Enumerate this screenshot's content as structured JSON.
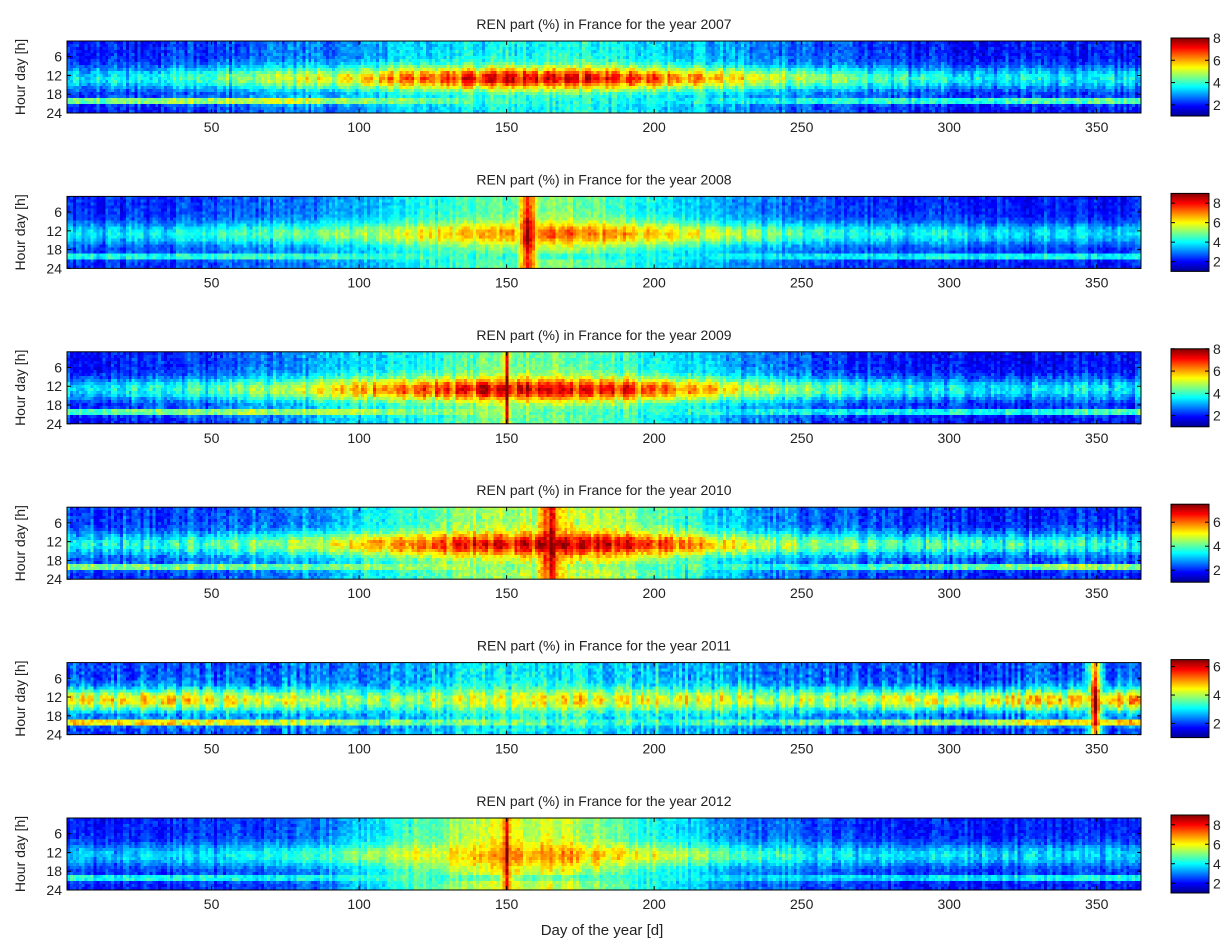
{
  "figure": {
    "xlabel": "Day of the year [d]"
  },
  "colormap": [
    "#00008f",
    "#0000ff",
    "#0080ff",
    "#00ffff",
    "#80ff80",
    "#ffff00",
    "#ff8000",
    "#ff0000",
    "#800000"
  ],
  "chart_data": [
    {
      "type": "heatmap",
      "title": "REN part (%) in France for the year 2007",
      "year": 2007,
      "ylabel": "Hour day [h]",
      "x_ticks": [
        50,
        100,
        150,
        200,
        250,
        300,
        350
      ],
      "y_ticks": [
        6,
        12,
        18,
        24
      ],
      "xlim": [
        1,
        365
      ],
      "ylim": [
        1,
        24
      ],
      "colorbar_ticks": [
        2,
        4,
        6,
        8
      ],
      "clim": [
        1,
        8
      ],
      "day_peak": [
        3.5,
        3.8,
        4.6,
        5.4,
        6.4,
        7.4,
        7.5,
        6.9,
        5.8,
        4.8,
        4.1,
        3.8,
        3.7,
        3.6
      ],
      "evening_band": [
        5.6,
        6.0,
        6.3,
        6.2,
        5.2,
        4.2,
        3.8,
        3.8,
        4.0,
        4.5,
        4.8,
        5.0,
        5.4,
        5.6
      ],
      "base": [
        2.0,
        2.1,
        2.4,
        2.8,
        3.2,
        3.6,
        3.8,
        3.5,
        3.0,
        2.5,
        2.1,
        2.0,
        2.0,
        2.0
      ],
      "hotspots": []
    },
    {
      "type": "heatmap",
      "title": "REN part (%) in France for the year 2008",
      "year": 2008,
      "ylabel": "Hour day [h]",
      "x_ticks": [
        50,
        100,
        150,
        200,
        250,
        300,
        350
      ],
      "y_ticks": [
        6,
        12,
        18,
        24
      ],
      "xlim": [
        1,
        365
      ],
      "ylim": [
        1,
        24
      ],
      "colorbar_ticks": [
        2,
        4,
        6,
        8
      ],
      "clim": [
        1,
        9
      ],
      "day_peak": [
        3.8,
        4.0,
        4.5,
        5.0,
        5.8,
        6.8,
        7.4,
        6.8,
        5.6,
        4.6,
        4.2,
        4.0,
        3.9,
        3.8
      ],
      "evening_band": [
        5.0,
        5.2,
        5.4,
        5.3,
        4.8,
        4.2,
        4.0,
        4.0,
        4.2,
        4.6,
        4.8,
        5.0,
        5.2,
        5.0
      ],
      "base": [
        2.2,
        2.3,
        2.6,
        3.0,
        3.8,
        4.6,
        5.0,
        4.2,
        3.2,
        2.6,
        2.3,
        2.2,
        2.1,
        2.1
      ],
      "hotspots": [
        {
          "day": 157,
          "width": 9,
          "value": 8.8
        }
      ]
    },
    {
      "type": "heatmap",
      "title": "REN part (%) in France for the year 2009",
      "year": 2009,
      "ylabel": "Hour day [h]",
      "x_ticks": [
        50,
        100,
        150,
        200,
        250,
        300,
        350
      ],
      "y_ticks": [
        6,
        12,
        18,
        24
      ],
      "xlim": [
        1,
        365
      ],
      "ylim": [
        1,
        24
      ],
      "colorbar_ticks": [
        2,
        4,
        6,
        8
      ],
      "clim": [
        1,
        8
      ],
      "day_peak": [
        3.6,
        3.9,
        4.5,
        5.4,
        6.6,
        7.4,
        7.6,
        7.0,
        5.6,
        4.6,
        4.0,
        3.7,
        3.6,
        3.6
      ],
      "evening_band": [
        5.4,
        5.7,
        6.0,
        5.8,
        5.2,
        4.6,
        4.2,
        4.0,
        4.0,
        4.4,
        4.6,
        4.8,
        5.1,
        5.4
      ],
      "base": [
        2.0,
        2.1,
        2.4,
        3.0,
        3.6,
        4.2,
        4.4,
        3.8,
        3.0,
        2.4,
        2.0,
        1.9,
        1.9,
        2.0
      ],
      "hotspots": [
        {
          "day": 150,
          "width": 3,
          "value": 8.0
        }
      ]
    },
    {
      "type": "heatmap",
      "title": "REN part (%) in France for the year 2010",
      "year": 2010,
      "ylabel": "Hour day [h]",
      "x_ticks": [
        50,
        100,
        150,
        200,
        250,
        300,
        350
      ],
      "y_ticks": [
        6,
        12,
        18,
        24
      ],
      "xlim": [
        1,
        365
      ],
      "ylim": [
        1,
        24
      ],
      "colorbar_ticks": [
        2,
        4,
        6
      ],
      "clim": [
        1,
        7.5
      ],
      "day_peak": [
        3.6,
        3.8,
        4.2,
        5.0,
        6.0,
        6.8,
        7.2,
        6.8,
        5.2,
        4.4,
        4.0,
        4.0,
        3.9,
        3.7
      ],
      "evening_band": [
        5.6,
        5.4,
        5.2,
        5.0,
        4.8,
        4.4,
        4.2,
        4.0,
        4.0,
        4.2,
        4.8,
        5.2,
        5.6,
        5.8
      ],
      "base": [
        2.2,
        2.2,
        2.4,
        2.9,
        3.6,
        4.4,
        4.8,
        4.2,
        3.0,
        2.4,
        2.1,
        2.0,
        2.0,
        2.1
      ],
      "hotspots": [
        {
          "day": 165,
          "width": 14,
          "value": 7.2
        }
      ]
    },
    {
      "type": "heatmap",
      "title": "REN part (%) in France for the year 2011",
      "year": 2011,
      "ylabel": "Hour day [h]",
      "x_ticks": [
        50,
        100,
        150,
        200,
        250,
        300,
        350
      ],
      "y_ticks": [
        6,
        12,
        18,
        24
      ],
      "xlim": [
        1,
        365
      ],
      "ylim": [
        1,
        24
      ],
      "colorbar_ticks": [
        2,
        4,
        6
      ],
      "clim": [
        1,
        6.5
      ],
      "day_peak": [
        4.8,
        4.8,
        4.6,
        4.2,
        4.0,
        4.2,
        4.6,
        4.6,
        4.4,
        4.2,
        4.4,
        4.6,
        4.8,
        5.2
      ],
      "evening_band": [
        6.2,
        6.0,
        5.6,
        5.0,
        4.4,
        4.0,
        3.8,
        3.8,
        4.0,
        4.2,
        4.6,
        5.2,
        5.8,
        6.2
      ],
      "base": [
        2.2,
        2.1,
        2.2,
        2.3,
        2.6,
        2.9,
        3.0,
        2.9,
        2.6,
        2.3,
        2.1,
        2.0,
        2.1,
        2.2
      ],
      "hotspots": [
        {
          "day": 350,
          "width": 6,
          "value": 6.2
        }
      ]
    },
    {
      "type": "heatmap",
      "title": "REN part (%) in France for the year 2012",
      "year": 2012,
      "ylabel": "Hour day [h]",
      "x_ticks": [
        50,
        100,
        150,
        200,
        250,
        300,
        350
      ],
      "y_ticks": [
        6,
        12,
        18,
        24
      ],
      "xlim": [
        1,
        365
      ],
      "ylim": [
        1,
        24
      ],
      "colorbar_ticks": [
        2,
        4,
        6,
        8
      ],
      "clim": [
        1,
        9
      ],
      "day_peak": [
        3.6,
        3.8,
        4.0,
        4.6,
        5.6,
        6.6,
        7.0,
        6.0,
        4.8,
        4.2,
        4.0,
        3.9,
        3.8,
        3.7
      ],
      "evening_band": [
        5.2,
        5.2,
        5.0,
        4.8,
        4.6,
        4.4,
        4.4,
        4.2,
        4.2,
        4.4,
        4.6,
        4.8,
        5.0,
        5.2
      ],
      "base": [
        2.2,
        2.2,
        2.4,
        2.8,
        4.2,
        5.6,
        5.6,
        4.2,
        3.0,
        2.6,
        2.3,
        2.2,
        2.2,
        2.2
      ],
      "hotspots": [
        {
          "day": 150,
          "width": 6,
          "value": 8.6
        }
      ]
    }
  ]
}
